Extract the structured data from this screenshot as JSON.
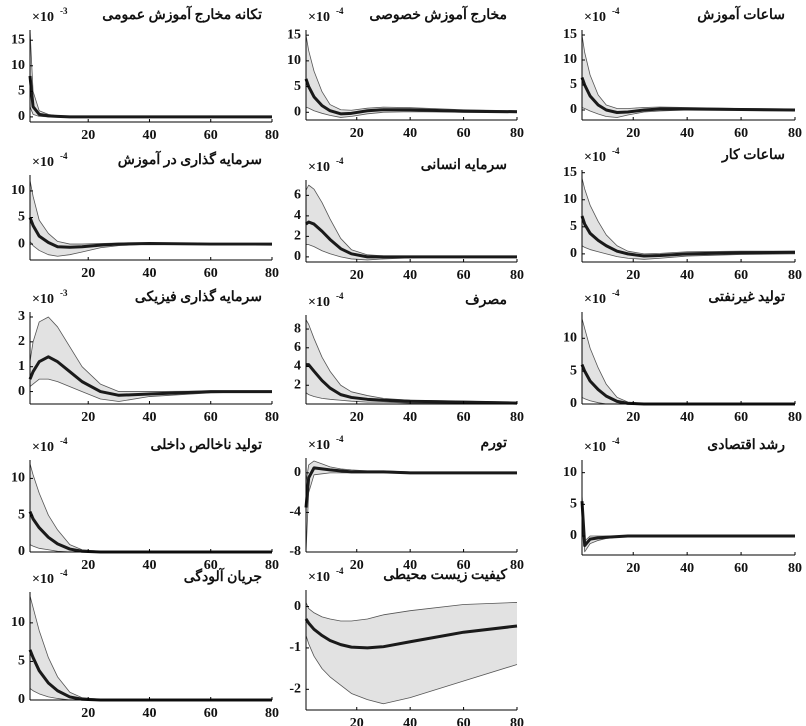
{
  "chart_data": [
    {
      "type": "line",
      "title": "تکانه مخارج آموزش عمومی",
      "scale_label": "×10",
      "scale_exponent": "-3",
      "x": [
        1,
        2,
        4,
        7,
        10,
        14,
        18,
        24,
        30,
        40,
        60,
        80
      ],
      "xlim": [
        1,
        80
      ],
      "xticks": [
        20,
        40,
        60,
        80
      ],
      "ylim": [
        -1,
        17
      ],
      "yticks": [
        0,
        5,
        10,
        15
      ],
      "mean_values": [
        8,
        2,
        0.5,
        0.2,
        0.1,
        0,
        0,
        0,
        0,
        0,
        0,
        0
      ],
      "upper_values": [
        17,
        5,
        1.2,
        0.5,
        0.2,
        0.1,
        0,
        0,
        0,
        0,
        0,
        0
      ],
      "lower_values": [
        2,
        0.5,
        0.1,
        0,
        0,
        0,
        0,
        0,
        0,
        0,
        0,
        0
      ],
      "color": "#1a1a1a",
      "band_color": "#e2e2e2"
    },
    {
      "type": "line",
      "title": "مخارج آموزش خصوصی",
      "scale_label": "×10",
      "scale_exponent": "-4",
      "x": [
        1,
        2,
        4,
        7,
        10,
        14,
        18,
        24,
        30,
        40,
        60,
        80
      ],
      "xlim": [
        1,
        80
      ],
      "xticks": [
        20,
        40,
        60,
        80
      ],
      "ylim": [
        -1.5,
        16
      ],
      "yticks": [
        0,
        5,
        10,
        15
      ],
      "mean_values": [
        6.5,
        5,
        3,
        1.3,
        0.3,
        -0.3,
        -0.2,
        0.3,
        0.5,
        0.5,
        0.2,
        0.1
      ],
      "upper_values": [
        15,
        12,
        8,
        4,
        1.5,
        0.5,
        0.4,
        0.8,
        1,
        0.9,
        0.5,
        0.3
      ],
      "lower_values": [
        1,
        0.8,
        0.3,
        -0.2,
        -0.6,
        -1,
        -0.8,
        -0.3,
        0,
        0.1,
        0,
        0
      ],
      "color": "#1a1a1a",
      "band_color": "#e2e2e2"
    },
    {
      "type": "line",
      "title": "ساعات آموزش",
      "scale_label": "×10",
      "scale_exponent": "-4",
      "x": [
        1,
        2,
        4,
        7,
        10,
        14,
        18,
        24,
        30,
        40,
        60,
        80
      ],
      "xlim": [
        1,
        80
      ],
      "xticks": [
        20,
        40,
        60,
        80
      ],
      "ylim": [
        -2,
        16
      ],
      "yticks": [
        0,
        5,
        10,
        15
      ],
      "mean_values": [
        6.5,
        5,
        2.8,
        1,
        0,
        -0.5,
        -0.4,
        0,
        0.2,
        0.2,
        0.1,
        0
      ],
      "upper_values": [
        15,
        11.5,
        7,
        3,
        1,
        0.3,
        0.3,
        0.5,
        0.6,
        0.5,
        0.3,
        0.2
      ],
      "lower_values": [
        0.5,
        0.3,
        -0.2,
        -0.8,
        -1.3,
        -1.5,
        -1,
        -0.4,
        -0.2,
        0,
        0,
        0
      ],
      "color": "#1a1a1a",
      "band_color": "#e2e2e2"
    },
    {
      "type": "line",
      "title": "سرمایه گذاری در آموزش",
      "scale_label": "×10",
      "scale_exponent": "-4",
      "x": [
        1,
        2,
        4,
        7,
        10,
        14,
        18,
        24,
        30,
        40,
        60,
        80
      ],
      "xlim": [
        1,
        80
      ],
      "xticks": [
        20,
        40,
        60,
        80
      ],
      "ylim": [
        -3,
        13
      ],
      "yticks": [
        0,
        5,
        10
      ],
      "mean_values": [
        5,
        3.5,
        1.5,
        0.3,
        -0.5,
        -0.6,
        -0.5,
        -0.2,
        0,
        0.1,
        0,
        0
      ],
      "upper_values": [
        12,
        9,
        4.5,
        2,
        0.5,
        0,
        0,
        0.1,
        0.2,
        0.2,
        0.1,
        0
      ],
      "lower_values": [
        0.5,
        -0.3,
        -1.2,
        -2,
        -2.3,
        -2,
        -1.5,
        -0.7,
        -0.3,
        0,
        0,
        0
      ],
      "color": "#1a1a1a",
      "band_color": "#e2e2e2"
    },
    {
      "type": "line",
      "title": "سرمایه انسانی",
      "scale_label": "×10",
      "scale_exponent": "-4",
      "x": [
        1,
        2,
        4,
        7,
        10,
        14,
        18,
        24,
        30,
        40,
        60,
        80
      ],
      "xlim": [
        1,
        80
      ],
      "xticks": [
        20,
        40,
        60,
        80
      ],
      "ylim": [
        -0.5,
        7.5
      ],
      "yticks": [
        0,
        2,
        4,
        6
      ],
      "mean_values": [
        3.2,
        3.4,
        3.2,
        2.5,
        1.7,
        0.8,
        0.3,
        0,
        0,
        0,
        0,
        0
      ],
      "upper_values": [
        6.5,
        7,
        6.6,
        5.3,
        3.7,
        1.8,
        0.7,
        0.2,
        0.1,
        0.1,
        0.1,
        0.1
      ],
      "lower_values": [
        1.2,
        1.2,
        1,
        0.6,
        0.3,
        0,
        -0.2,
        -0.3,
        -0.2,
        -0.1,
        0,
        0
      ],
      "color": "#1a1a1a",
      "band_color": "#e2e2e2"
    },
    {
      "type": "line",
      "title": "ساعات کار",
      "scale_label": "×10",
      "scale_exponent": "-4",
      "x": [
        1,
        2,
        4,
        7,
        10,
        14,
        18,
        24,
        30,
        40,
        60,
        80
      ],
      "xlim": [
        1,
        80
      ],
      "xticks": [
        20,
        40,
        60,
        80
      ],
      "ylim": [
        -1.5,
        15.5
      ],
      "yticks": [
        0,
        5,
        10,
        15
      ],
      "mean_values": [
        7,
        5.5,
        3.8,
        2.5,
        1.5,
        0.5,
        0,
        -0.4,
        -0.3,
        0,
        0.2,
        0.3
      ],
      "upper_values": [
        14,
        12,
        9,
        6,
        3.5,
        1.5,
        0.5,
        0,
        0.1,
        0.4,
        0.5,
        0.5
      ],
      "lower_values": [
        1.5,
        1.2,
        0.8,
        0.4,
        0,
        -0.5,
        -0.8,
        -1,
        -0.8,
        -0.4,
        -0.1,
        0
      ],
      "color": "#1a1a1a",
      "band_color": "#e2e2e2"
    },
    {
      "type": "line",
      "title": "سرمایه گذاری فیزیکی",
      "scale_label": "×10",
      "scale_exponent": "-3",
      "x": [
        1,
        2,
        4,
        7,
        10,
        14,
        18,
        24,
        30,
        40,
        60,
        80
      ],
      "xlim": [
        1,
        80
      ],
      "xticks": [
        20,
        40,
        60,
        80
      ],
      "ylim": [
        -0.5,
        3.2
      ],
      "yticks": [
        0,
        1,
        2,
        3
      ],
      "mean_values": [
        0.5,
        0.8,
        1.2,
        1.4,
        1.2,
        0.8,
        0.4,
        0,
        -0.15,
        -0.1,
        0,
        0
      ],
      "upper_values": [
        1.2,
        2,
        2.8,
        3,
        2.6,
        1.8,
        1,
        0.3,
        0,
        0,
        0.02,
        0.02
      ],
      "lower_values": [
        0.2,
        0.3,
        0.5,
        0.5,
        0.4,
        0.2,
        0,
        -0.3,
        -0.4,
        -0.2,
        -0.05,
        0
      ],
      "color": "#1a1a1a",
      "band_color": "#e2e2e2"
    },
    {
      "type": "line",
      "title": "مصرف",
      "scale_label": "×10",
      "scale_exponent": "-4",
      "x": [
        1,
        2,
        4,
        7,
        10,
        14,
        18,
        24,
        30,
        40,
        60,
        80
      ],
      "xlim": [
        1,
        80
      ],
      "xticks": [
        20,
        40,
        60,
        80
      ],
      "ylim": [
        0,
        9.5
      ],
      "yticks": [
        2,
        4,
        6,
        8
      ],
      "mean_values": [
        4.2,
        4.2,
        3.5,
        2.5,
        1.7,
        1,
        0.7,
        0.5,
        0.4,
        0.3,
        0.2,
        0.1
      ],
      "upper_values": [
        9,
        8.5,
        7,
        5,
        3.5,
        2,
        1.3,
        0.9,
        0.6,
        0.4,
        0.3,
        0.2
      ],
      "lower_values": [
        1.2,
        1,
        0.8,
        0.6,
        0.5,
        0.4,
        0.3,
        0.2,
        0.2,
        0.1,
        0.1,
        0
      ],
      "color": "#1a1a1a",
      "band_color": "#e2e2e2"
    },
    {
      "type": "line",
      "title": "تولید غیرنفتی",
      "scale_label": "×10",
      "scale_exponent": "-4",
      "x": [
        1,
        2,
        4,
        7,
        10,
        14,
        18,
        24,
        30,
        40,
        60,
        80
      ],
      "xlim": [
        1,
        80
      ],
      "xticks": [
        20,
        40,
        60,
        80
      ],
      "ylim": [
        0,
        14
      ],
      "yticks": [
        0,
        5,
        10
      ],
      "mean_values": [
        6,
        5,
        3.5,
        2.2,
        1.2,
        0.4,
        0.1,
        0,
        0,
        0,
        0,
        0
      ],
      "upper_values": [
        13,
        11.5,
        8.5,
        5.5,
        3,
        1,
        0.3,
        0.1,
        0.1,
        0,
        0,
        0
      ],
      "lower_values": [
        1,
        0.8,
        0.5,
        0.2,
        0,
        0,
        0,
        0,
        0,
        0,
        0,
        0
      ],
      "color": "#1a1a1a",
      "band_color": "#e2e2e2"
    },
    {
      "type": "line",
      "title": "تولید ناخالص داخلی",
      "scale_label": "×10",
      "scale_exponent": "-4",
      "x": [
        1,
        2,
        4,
        7,
        10,
        14,
        18,
        24,
        30,
        40,
        60,
        80
      ],
      "xlim": [
        1,
        80
      ],
      "xticks": [
        20,
        40,
        60,
        80
      ],
      "ylim": [
        0,
        12.5
      ],
      "yticks": [
        0,
        5,
        10
      ],
      "mean_values": [
        5.5,
        4.5,
        3.3,
        2,
        1.1,
        0.4,
        0.1,
        0,
        0,
        0,
        0,
        0
      ],
      "upper_values": [
        12,
        10.5,
        8,
        5,
        3,
        1,
        0.3,
        0.1,
        0,
        0,
        0,
        0
      ],
      "lower_values": [
        1,
        0.8,
        0.5,
        0.3,
        0.1,
        0,
        0,
        0,
        0,
        0,
        0,
        0
      ],
      "color": "#1a1a1a",
      "band_color": "#e2e2e2"
    },
    {
      "type": "line",
      "title": "تورم",
      "scale_label": "×10",
      "scale_exponent": "-4",
      "x": [
        1,
        2,
        4,
        7,
        10,
        14,
        18,
        24,
        30,
        40,
        60,
        80
      ],
      "xlim": [
        1,
        80
      ],
      "xticks": [
        20,
        40,
        60,
        80
      ],
      "ylim": [
        -8,
        1.5
      ],
      "yticks": [
        -8,
        -4,
        0
      ],
      "mean_values": [
        -3.5,
        -0.5,
        0.5,
        0.4,
        0.3,
        0.2,
        0.1,
        0.1,
        0.1,
        0,
        0,
        0
      ],
      "upper_values": [
        -1,
        0.8,
        1.2,
        0.9,
        0.6,
        0.4,
        0.3,
        0.2,
        0.2,
        0.1,
        0.1,
        0.1
      ],
      "lower_values": [
        -8,
        -2,
        -0.2,
        -0.1,
        0,
        0,
        0,
        0,
        0,
        0,
        0,
        0
      ],
      "color": "#1a1a1a",
      "band_color": "#e2e2e2"
    },
    {
      "type": "line",
      "title": "رشد اقتصادی",
      "scale_label": "×10",
      "scale_exponent": "-4",
      "x": [
        1,
        2,
        4,
        7,
        10,
        14,
        18,
        24,
        30,
        40,
        60,
        80
      ],
      "xlim": [
        1,
        80
      ],
      "xticks": [
        20,
        40,
        60,
        80
      ],
      "ylim": [
        -3,
        12
      ],
      "yticks": [
        0,
        5,
        10
      ],
      "mean_values": [
        5.5,
        -1.5,
        -0.5,
        -0.3,
        -0.2,
        -0.1,
        0,
        0,
        0,
        0,
        0,
        0
      ],
      "upper_values": [
        6.5,
        -0.8,
        0,
        0,
        0,
        0,
        0,
        0,
        0,
        0,
        0,
        0
      ],
      "lower_values": [
        4.5,
        -2.5,
        -1.2,
        -0.7,
        -0.4,
        -0.2,
        -0.1,
        0,
        0,
        0,
        0,
        0
      ],
      "color": "#1a1a1a",
      "band_color": "#e2e2e2"
    },
    {
      "type": "line",
      "title": "جریان آلودگی",
      "scale_label": "×10",
      "scale_exponent": "-4",
      "x": [
        1,
        2,
        4,
        7,
        10,
        14,
        18,
        24,
        30,
        40,
        60,
        80
      ],
      "xlim": [
        1,
        80
      ],
      "xticks": [
        20,
        40,
        60,
        80
      ],
      "ylim": [
        0,
        14
      ],
      "yticks": [
        0,
        5,
        10
      ],
      "mean_values": [
        6.5,
        5.5,
        3.8,
        2.2,
        1.2,
        0.4,
        0.1,
        0,
        0,
        0,
        0,
        0
      ],
      "upper_values": [
        13.5,
        12,
        9,
        5.5,
        3,
        1,
        0.3,
        0.1,
        0,
        0,
        0,
        0
      ],
      "lower_values": [
        1.5,
        1.2,
        0.8,
        0.4,
        0.2,
        0,
        0,
        0,
        0,
        0,
        0,
        0
      ],
      "color": "#1a1a1a",
      "band_color": "#e2e2e2"
    },
    {
      "type": "line",
      "title": "کیفیت زیست محیطی",
      "scale_label": "×10",
      "scale_exponent": "-4",
      "x": [
        1,
        2,
        4,
        7,
        10,
        14,
        18,
        24,
        30,
        40,
        60,
        80
      ],
      "xlim": [
        1,
        80
      ],
      "xticks": [
        20,
        40,
        60,
        80
      ],
      "ylim": [
        -2.5,
        0.4
      ],
      "yticks": [
        -2,
        -1,
        0
      ],
      "mean_values": [
        -0.3,
        -0.4,
        -0.55,
        -0.7,
        -0.82,
        -0.92,
        -0.98,
        -1,
        -0.97,
        -0.85,
        -0.62,
        -0.47
      ],
      "upper_values": [
        0.1,
        -0.05,
        -0.15,
        -0.25,
        -0.3,
        -0.35,
        -0.35,
        -0.3,
        -0.2,
        -0.1,
        0.05,
        0.1
      ],
      "lower_values": [
        -0.7,
        -0.9,
        -1.2,
        -1.5,
        -1.7,
        -1.9,
        -2.1,
        -2.25,
        -2.35,
        -2.2,
        -1.8,
        -1.4
      ],
      "color": "#1a1a1a",
      "band_color": "#e2e2e2"
    }
  ]
}
